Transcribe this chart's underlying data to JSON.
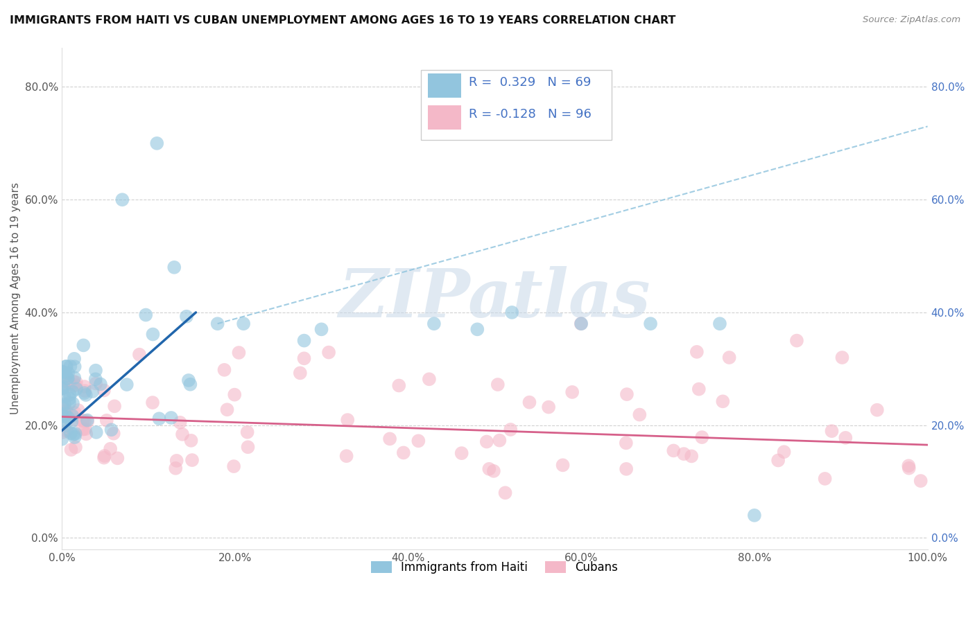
{
  "title": "IMMIGRANTS FROM HAITI VS CUBAN UNEMPLOYMENT AMONG AGES 16 TO 19 YEARS CORRELATION CHART",
  "source": "Source: ZipAtlas.com",
  "ylabel": "Unemployment Among Ages 16 to 19 years",
  "xlim": [
    0.0,
    1.0
  ],
  "ylim": [
    -0.02,
    0.87
  ],
  "xticks": [
    0.0,
    0.2,
    0.4,
    0.6,
    0.8,
    1.0
  ],
  "xtick_labels": [
    "0.0%",
    "20.0%",
    "40.0%",
    "60.0%",
    "80.0%",
    "100.0%"
  ],
  "yticks": [
    0.0,
    0.2,
    0.4,
    0.6,
    0.8
  ],
  "ytick_labels": [
    "0.0%",
    "20.0%",
    "40.0%",
    "60.0%",
    "80.0%"
  ],
  "haiti_R": 0.329,
  "haiti_N": 69,
  "cuba_R": -0.128,
  "cuba_N": 96,
  "haiti_color": "#92c5de",
  "cuba_color": "#f4b8c8",
  "haiti_line_color": "#2166ac",
  "cuba_line_color": "#d6608a",
  "dashed_line_color": "#92c5de",
  "watermark_text": "ZIPatlas",
  "watermark_color": "#c8d8e8",
  "legend_text_color": "#4472c4",
  "right_axis_color": "#4472c4",
  "haiti_line_x0": 0.0,
  "haiti_line_y0": 0.19,
  "haiti_line_x1": 0.155,
  "haiti_line_y1": 0.4,
  "cuba_line_x0": 0.0,
  "cuba_line_y0": 0.215,
  "cuba_line_x1": 1.0,
  "cuba_line_y1": 0.165,
  "dash_line_x0": 0.18,
  "dash_line_y0": 0.38,
  "dash_line_x1": 1.0,
  "dash_line_y1": 0.73
}
